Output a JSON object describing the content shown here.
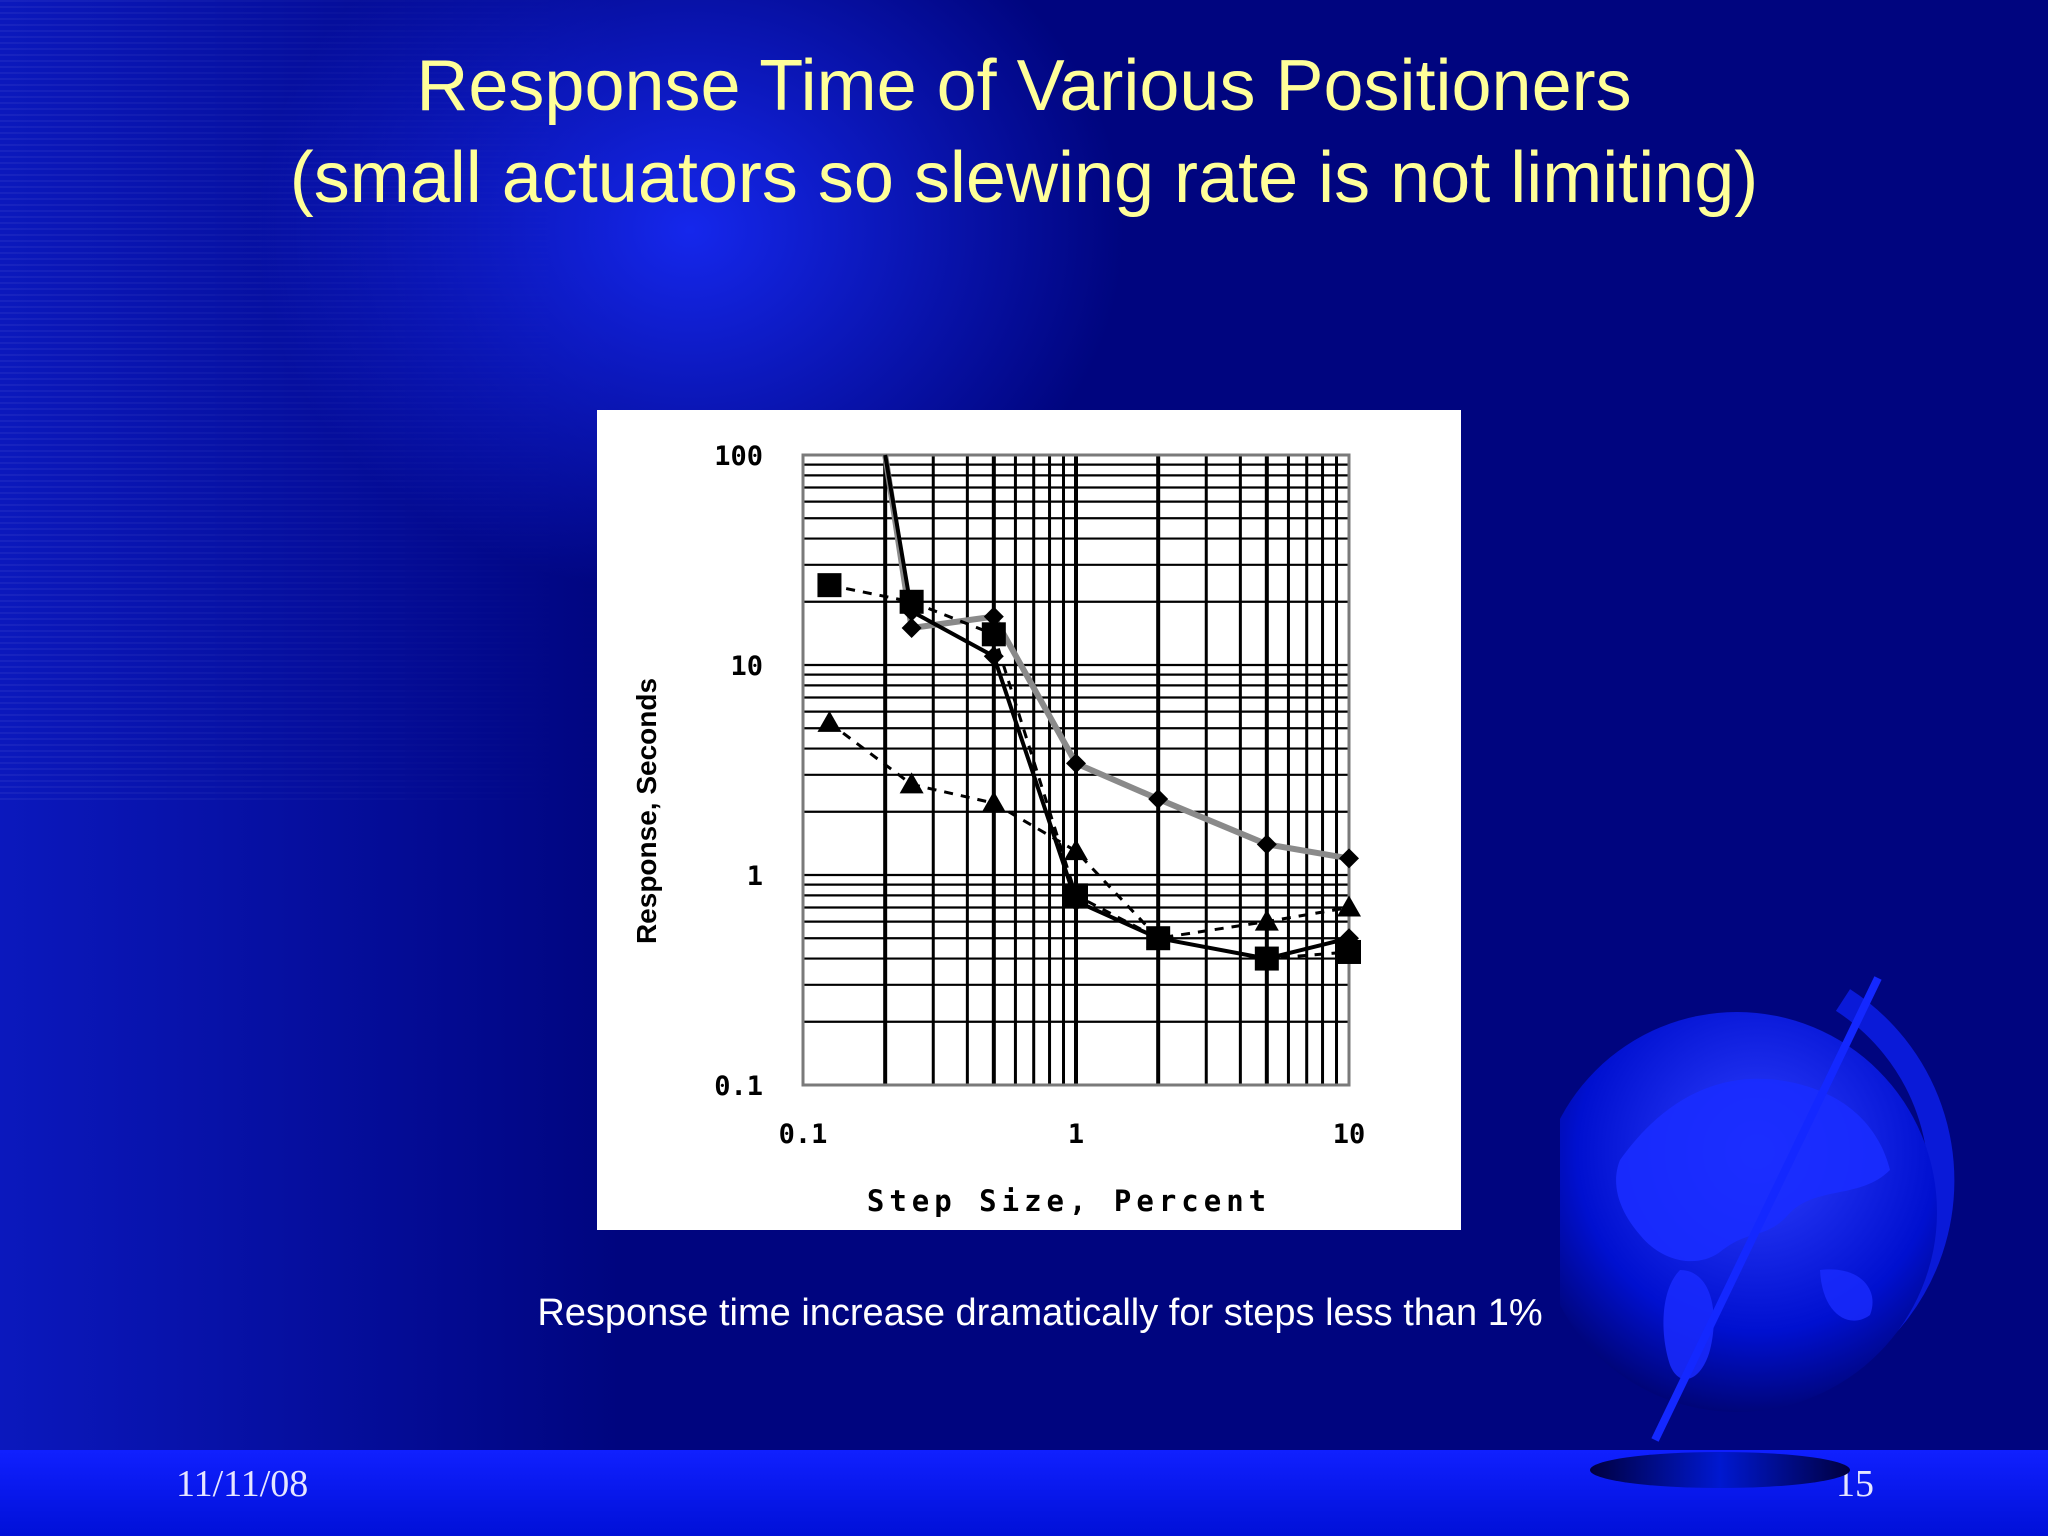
{
  "slide": {
    "title_line1": "Response Time of Various Positioners",
    "title_line2": "(small actuators so slewing rate is not limiting)",
    "caption": "Response time increase dramatically for steps less than 1%",
    "footer_date": "11/11/08",
    "footer_page": "15",
    "colors": {
      "background": "#00057f",
      "title": "#ffff99",
      "footer_bar": "#1020ff"
    }
  },
  "chart_data": {
    "type": "line",
    "xlabel": "Step Size, Percent",
    "ylabel": "Response, Seconds",
    "x_scale": "log",
    "y_scale": "log",
    "xlim": [
      0.1,
      10
    ],
    "ylim": [
      0.1,
      100
    ],
    "x_ticks": [
      "0.1",
      "1",
      "10"
    ],
    "y_ticks": [
      "0.1",
      "1",
      "10",
      "100"
    ],
    "grid": true,
    "legend": "none",
    "series": [
      {
        "marker": "diamond",
        "line": "solid-gray",
        "points": [
          [
            0.2,
            100
          ],
          [
            0.25,
            15
          ],
          [
            0.5,
            17
          ],
          [
            1,
            3.4
          ],
          [
            2,
            2.3
          ],
          [
            5,
            1.4
          ],
          [
            10,
            1.2
          ]
        ]
      },
      {
        "marker": "square",
        "line": "dashed",
        "points": [
          [
            0.125,
            24
          ],
          [
            0.25,
            20
          ],
          [
            0.5,
            14
          ],
          [
            1,
            0.8
          ],
          [
            2,
            0.5
          ],
          [
            5,
            0.4
          ],
          [
            10,
            0.43
          ]
        ]
      },
      {
        "marker": "diamond",
        "line": "solid-black",
        "points": [
          [
            0.2,
            100
          ],
          [
            0.25,
            18
          ],
          [
            0.5,
            11
          ],
          [
            1,
            0.75
          ],
          [
            2,
            0.5
          ],
          [
            5,
            0.4
          ],
          [
            10,
            0.5
          ]
        ]
      },
      {
        "marker": "triangle",
        "line": "dashed",
        "points": [
          [
            0.125,
            5.3
          ],
          [
            0.25,
            2.7
          ],
          [
            0.5,
            2.2
          ],
          [
            1,
            1.3
          ],
          [
            2,
            0.5
          ],
          [
            5,
            0.6
          ],
          [
            10,
            0.7
          ]
        ]
      }
    ]
  }
}
